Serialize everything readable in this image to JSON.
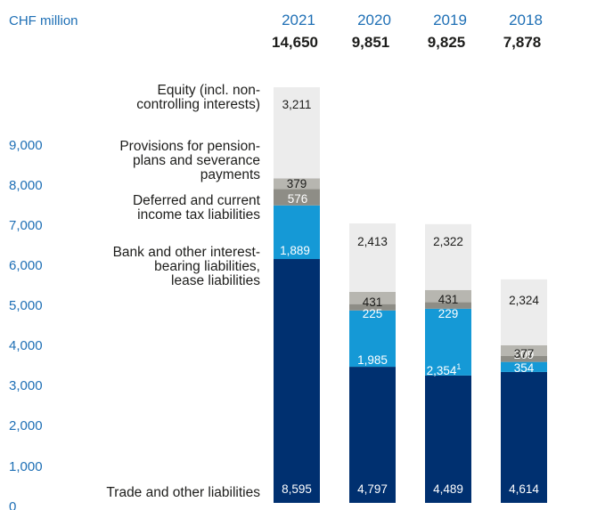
{
  "chart_data": {
    "type": "bar",
    "stacked": true,
    "unit_label": "CHF million",
    "categories": [
      "2021",
      "2020",
      "2019",
      "2018"
    ],
    "totals": [
      "14,650",
      "9,851",
      "9,825",
      "7,878"
    ],
    "y_ticks": [
      "0",
      "1,000",
      "2,000",
      "3,000",
      "4,000",
      "5,000",
      "6,000",
      "7,000",
      "8,000",
      "9,000"
    ],
    "ylim": [
      0,
      14650
    ],
    "series": [
      {
        "name": "Trade and other liabilities",
        "values": [
          8595,
          4797,
          4489,
          4614
        ],
        "labels": [
          "8,595",
          "4,797",
          "4,489",
          "4,614"
        ],
        "color": "#003070",
        "label_color": "#ffffff"
      },
      {
        "name": "Bank and other interest-bearing liabilities, lease liabilities",
        "values": [
          1889,
          1985,
          2354,
          354
        ],
        "labels": [
          "1,889",
          "1,985",
          "2,354",
          "354"
        ],
        "footnotes": [
          "",
          "",
          "1",
          ""
        ],
        "color": "#1599d6",
        "label_color": "#ffffff"
      },
      {
        "name": "Deferred and current income tax liabilities",
        "values": [
          576,
          225,
          229,
          209
        ],
        "labels": [
          "576",
          "225",
          "229",
          "209"
        ],
        "color": "#8e8d86",
        "label_color": "#ffffff"
      },
      {
        "name": "Provisions for pension plans and severance payments",
        "values": [
          379,
          431,
          431,
          377
        ],
        "labels": [
          "379",
          "431",
          "431",
          "377"
        ],
        "color": "#b7b6b0",
        "label_color": "#1d1d1b"
      },
      {
        "name": "Equity (incl. non-controlling interests)",
        "values": [
          3211,
          2413,
          2322,
          2324
        ],
        "labels": [
          "3,211",
          "2,413",
          "2,322",
          "2,324"
        ],
        "color": "#ececec",
        "label_color": "#1d1d1b"
      }
    ],
    "category_label_lines": [
      [
        "Trade and other liabilities"
      ],
      [
        "Bank and other interest-",
        "bearing liabilities,",
        "lease liabilities"
      ],
      [
        "Deferred and current",
        "income tax liabilities"
      ],
      [
        "Provisions for pension-",
        "plans and severance",
        "payments"
      ],
      [
        "Equity (incl. non-",
        "controlling interests)"
      ]
    ]
  }
}
